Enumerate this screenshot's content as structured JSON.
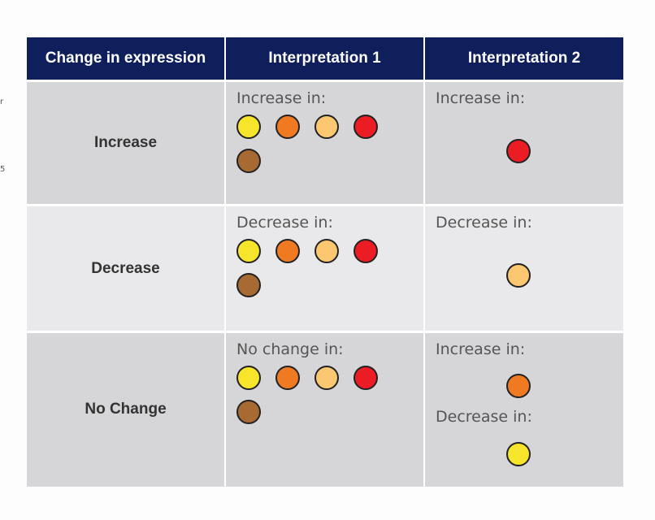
{
  "side_marks": [
    "r",
    "5"
  ],
  "header": {
    "col1": "Change in expression",
    "col2": "Interpretation 1",
    "col3": "Interpretation 2"
  },
  "colors": {
    "yellow": "#f7e52c",
    "orange": "#f07a22",
    "light_orange": "#fbc871",
    "red": "#ec1c24",
    "brown": "#a86a33",
    "header_bg": "#0f1f5c"
  },
  "rows": [
    {
      "label": "Increase",
      "interp1_label": "Increase in:",
      "interp1_dots": [
        "yellow",
        "orange",
        "light_orange",
        "red",
        "brown"
      ],
      "interp2_label": "Increase in:",
      "interp2_dot": "red"
    },
    {
      "label": "Decrease",
      "interp1_label": "Decrease in:",
      "interp1_dots": [
        "yellow",
        "orange",
        "light_orange",
        "red",
        "brown"
      ],
      "interp2_label": "Decrease in:",
      "interp2_dot": "light_orange"
    },
    {
      "label": "No Change",
      "interp1_label": "No change in:",
      "interp1_dots": [
        "yellow",
        "orange",
        "light_orange",
        "red",
        "brown"
      ],
      "interp2_label_a": "Increase in:",
      "interp2_dot_a": "orange",
      "interp2_label_b": "Decrease in:",
      "interp2_dot_b": "yellow"
    }
  ]
}
